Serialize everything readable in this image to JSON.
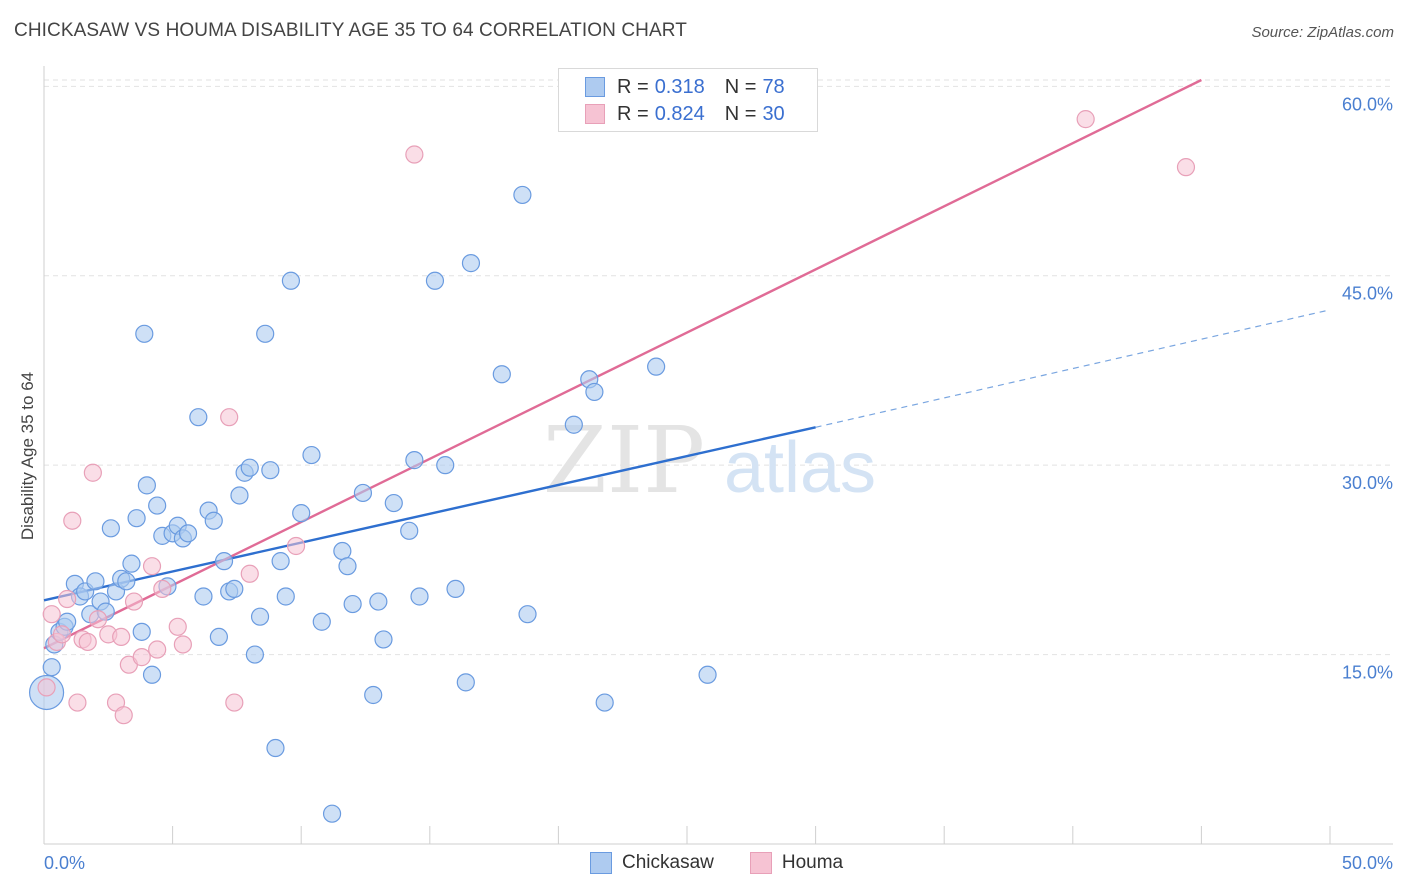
{
  "header": {
    "title": "CHICKASAW VS HOUMA DISABILITY AGE 35 TO 64 CORRELATION CHART",
    "source": "Source: ZipAtlas.com"
  },
  "legend_top": {
    "rows": [
      {
        "r_label": "R =",
        "r_value": "0.318",
        "n_label": "N =",
        "n_value": "78"
      },
      {
        "r_label": "R =",
        "r_value": "0.824",
        "n_label": "N =",
        "n_value": "30"
      }
    ]
  },
  "bottom_legend": {
    "chickasaw": "Chickasaw",
    "houma": "Houma"
  },
  "watermark": {
    "zip": "ZIP",
    "atlas": "atlas"
  },
  "colors": {
    "chickasaw_fill": "#aecbf0",
    "chickasaw_stroke": "#6a9be0",
    "chickasaw_line": "#2e6fcf",
    "houma_fill": "#f6c3d3",
    "houma_stroke": "#e8a0b8",
    "houma_line": "#e06b96",
    "tick_text": "#4a7fd0"
  },
  "chart_data": {
    "type": "scatter",
    "title": "CHICKASAW VS HOUMA DISABILITY AGE 35 TO 64 CORRELATION CHART",
    "xlabel": "",
    "ylabel": "Disability Age 35 to 64",
    "xlim": [
      0,
      50
    ],
    "ylim": [
      0,
      60.5
    ],
    "x_tick_labels": [
      "0.0%",
      "50.0%"
    ],
    "y_ticks": [
      15,
      30,
      45,
      60
    ],
    "y_tick_labels": [
      "15.0%",
      "30.0%",
      "45.0%",
      "60.0%"
    ],
    "series": [
      {
        "name": "Chickasaw",
        "r": 0.318,
        "n": 78,
        "trend": {
          "x0": 0,
          "y0": 19.3,
          "x1": 30,
          "y1": 33.0,
          "dashed_to_x": 50,
          "dashed_to_y": 42.3
        },
        "points": [
          [
            0.1,
            12.0
          ],
          [
            0.3,
            14.0
          ],
          [
            0.4,
            15.8
          ],
          [
            0.6,
            16.8
          ],
          [
            0.8,
            17.2
          ],
          [
            0.9,
            17.6
          ],
          [
            1.2,
            20.6
          ],
          [
            1.4,
            19.6
          ],
          [
            1.6,
            20.0
          ],
          [
            1.8,
            18.2
          ],
          [
            2.0,
            20.8
          ],
          [
            2.2,
            19.2
          ],
          [
            2.4,
            18.4
          ],
          [
            2.6,
            25.0
          ],
          [
            2.8,
            20.0
          ],
          [
            3.0,
            21.0
          ],
          [
            3.2,
            20.8
          ],
          [
            3.4,
            22.2
          ],
          [
            3.6,
            25.8
          ],
          [
            3.8,
            16.8
          ],
          [
            4.0,
            28.4
          ],
          [
            4.2,
            13.4
          ],
          [
            4.4,
            26.8
          ],
          [
            4.6,
            24.4
          ],
          [
            4.8,
            20.4
          ],
          [
            5.0,
            24.6
          ],
          [
            5.2,
            25.2
          ],
          [
            5.4,
            24.2
          ],
          [
            5.6,
            24.6
          ],
          [
            6.0,
            33.8
          ],
          [
            6.2,
            19.6
          ],
          [
            6.4,
            26.4
          ],
          [
            6.6,
            25.6
          ],
          [
            6.8,
            16.4
          ],
          [
            7.0,
            22.4
          ],
          [
            7.2,
            20.0
          ],
          [
            7.4,
            20.2
          ],
          [
            7.6,
            27.6
          ],
          [
            7.8,
            29.4
          ],
          [
            8.0,
            29.8
          ],
          [
            8.2,
            15.0
          ],
          [
            8.4,
            18.0
          ],
          [
            8.6,
            40.4
          ],
          [
            8.8,
            29.6
          ],
          [
            9.0,
            7.6
          ],
          [
            9.2,
            22.4
          ],
          [
            9.4,
            19.6
          ],
          [
            9.6,
            44.6
          ],
          [
            10.0,
            26.2
          ],
          [
            10.4,
            30.8
          ],
          [
            10.8,
            17.6
          ],
          [
            11.2,
            2.4
          ],
          [
            11.6,
            23.2
          ],
          [
            11.8,
            22.0
          ],
          [
            12.0,
            19.0
          ],
          [
            12.4,
            27.8
          ],
          [
            12.8,
            11.8
          ],
          [
            13.0,
            19.2
          ],
          [
            13.2,
            16.2
          ],
          [
            13.6,
            27.0
          ],
          [
            14.2,
            24.8
          ],
          [
            14.4,
            30.4
          ],
          [
            14.6,
            19.6
          ],
          [
            15.2,
            44.6
          ],
          [
            15.6,
            30.0
          ],
          [
            16.0,
            20.2
          ],
          [
            16.4,
            12.8
          ],
          [
            16.6,
            46.0
          ],
          [
            17.8,
            37.2
          ],
          [
            18.6,
            51.4
          ],
          [
            18.8,
            18.2
          ],
          [
            20.6,
            33.2
          ],
          [
            21.2,
            36.8
          ],
          [
            21.4,
            35.8
          ],
          [
            21.8,
            11.2
          ],
          [
            23.8,
            37.8
          ],
          [
            25.8,
            13.4
          ],
          [
            3.9,
            40.4
          ]
        ]
      },
      {
        "name": "Houma",
        "r": 0.824,
        "n": 30,
        "trend": {
          "x0": 0,
          "y0": 15.5,
          "x1": 45,
          "y1": 60.5
        },
        "points": [
          [
            0.1,
            12.4
          ],
          [
            0.3,
            18.2
          ],
          [
            0.5,
            16.0
          ],
          [
            0.7,
            16.6
          ],
          [
            0.9,
            19.4
          ],
          [
            1.1,
            25.6
          ],
          [
            1.3,
            11.2
          ],
          [
            1.5,
            16.2
          ],
          [
            1.7,
            16.0
          ],
          [
            1.9,
            29.4
          ],
          [
            2.1,
            17.8
          ],
          [
            2.5,
            16.6
          ],
          [
            2.8,
            11.2
          ],
          [
            3.0,
            16.4
          ],
          [
            3.1,
            10.2
          ],
          [
            3.3,
            14.2
          ],
          [
            3.5,
            19.2
          ],
          [
            3.8,
            14.8
          ],
          [
            4.2,
            22.0
          ],
          [
            4.4,
            15.4
          ],
          [
            4.6,
            20.2
          ],
          [
            5.2,
            17.2
          ],
          [
            5.4,
            15.8
          ],
          [
            7.2,
            33.8
          ],
          [
            7.4,
            11.2
          ],
          [
            8.0,
            21.4
          ],
          [
            9.8,
            23.6
          ],
          [
            14.4,
            54.6
          ],
          [
            40.5,
            57.4
          ],
          [
            44.4,
            53.6
          ]
        ]
      }
    ]
  }
}
